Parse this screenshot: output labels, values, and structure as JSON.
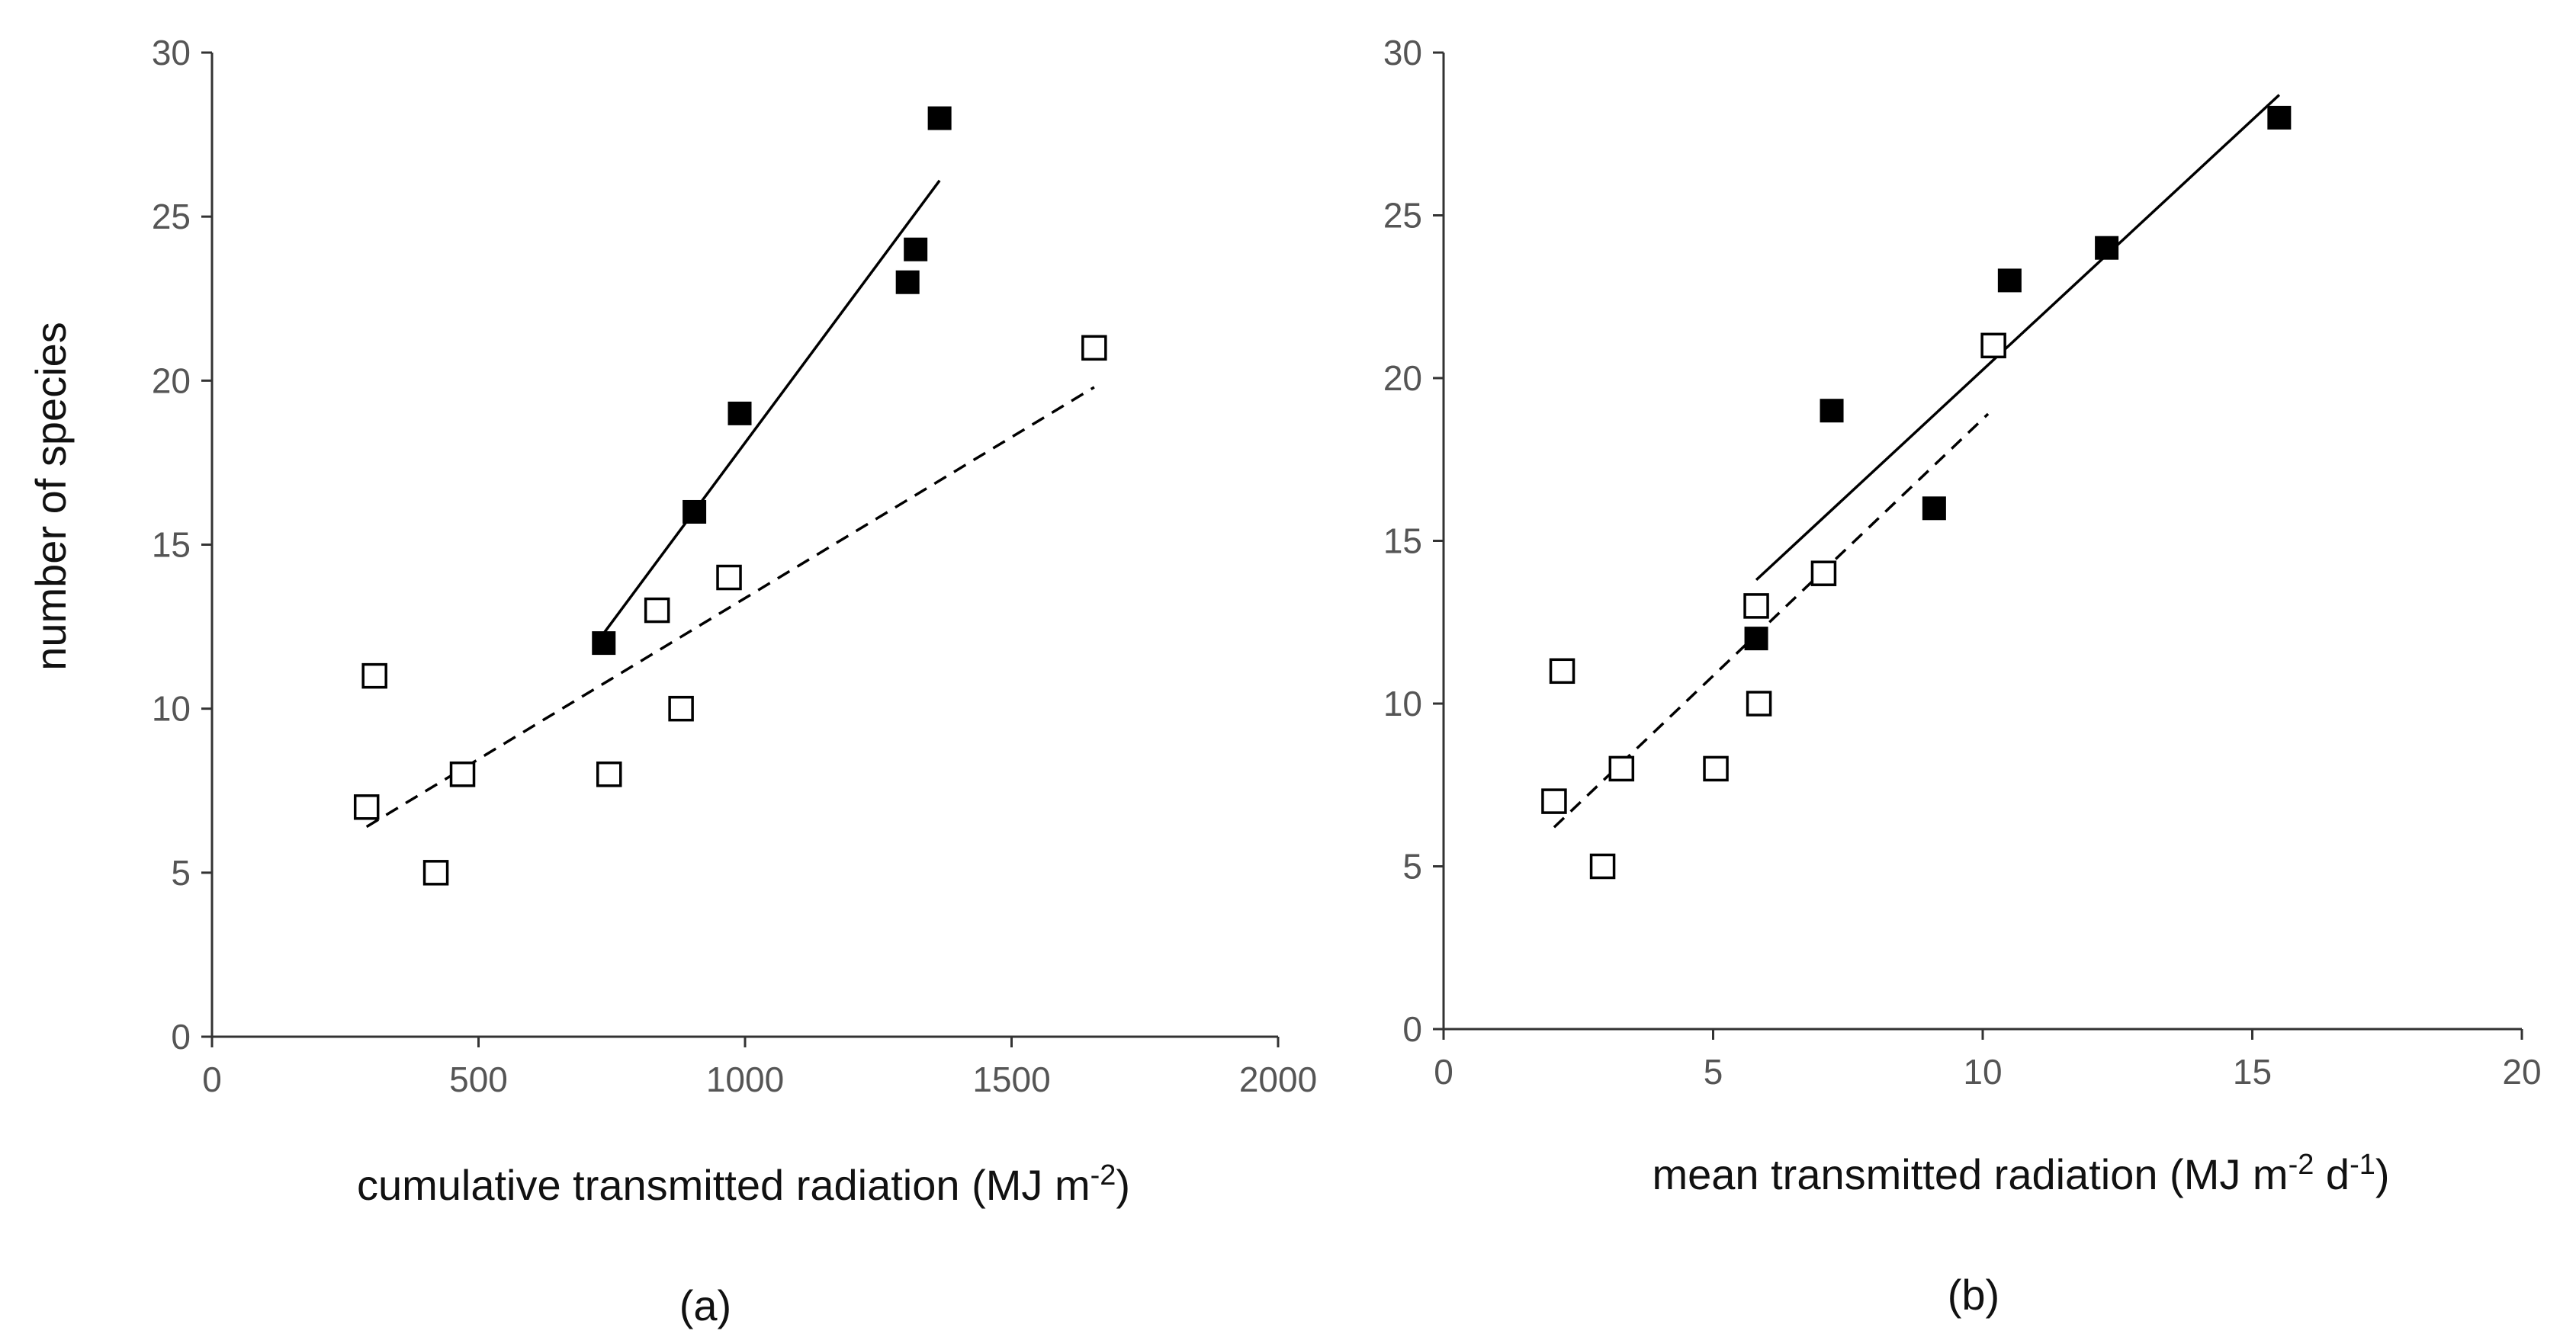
{
  "chart_data": [
    {
      "type": "scatter",
      "panel": "(a)",
      "xlabel": "cumulative transmitted radiation (MJ m",
      "xlabel_sup": "-2",
      "xlabel_end": ")",
      "ylabel": "number of species",
      "xlim": [
        0,
        2000
      ],
      "ylim": [
        0,
        30
      ],
      "xticks": [
        0,
        500,
        1000,
        1500,
        2000
      ],
      "yticks": [
        0,
        5,
        10,
        15,
        20,
        25,
        30
      ],
      "grid": false,
      "series": [
        {
          "name": "filled",
          "marker": "filled-square",
          "x": [
            735,
            905,
            990,
            1305,
            1320,
            1365
          ],
          "y": [
            12,
            16,
            19,
            23,
            24,
            28
          ],
          "fit": {
            "style": "solid",
            "x": [
              735,
              1365
            ],
            "y": [
              12.3,
              26.1
            ]
          }
        },
        {
          "name": "open",
          "marker": "open-square",
          "x": [
            290,
            305,
            420,
            470,
            745,
            835,
            880,
            970,
            1655
          ],
          "y": [
            7,
            11,
            5,
            8,
            8,
            13,
            10,
            14,
            21
          ],
          "fit": {
            "style": "dashed",
            "x": [
              290,
              1655
            ],
            "y": [
              6.4,
              19.8
            ]
          }
        }
      ]
    },
    {
      "type": "scatter",
      "panel": "(b)",
      "xlabel": "mean transmitted radiation (MJ m",
      "xlabel_sup": "-2",
      "xlabel_mid": " d",
      "xlabel_sup2": "-1",
      "xlabel_end": ")",
      "ylabel": "",
      "xlim": [
        0,
        20
      ],
      "ylim": [
        0,
        30
      ],
      "xticks": [
        0,
        5,
        10,
        15,
        20
      ],
      "yticks": [
        0,
        5,
        10,
        15,
        20,
        25,
        30
      ],
      "grid": false,
      "series": [
        {
          "name": "filled",
          "marker": "filled-square",
          "x": [
            5.8,
            7.2,
            9.1,
            10.5,
            12.3,
            15.5
          ],
          "y": [
            12,
            19,
            16,
            23,
            24,
            28
          ],
          "fit": {
            "style": "solid",
            "x": [
              5.8,
              15.5
            ],
            "y": [
              13.8,
              28.7
            ]
          }
        },
        {
          "name": "open",
          "marker": "open-square",
          "x": [
            2.05,
            2.2,
            2.95,
            3.3,
            5.05,
            5.8,
            5.85,
            7.05,
            10.2
          ],
          "y": [
            7,
            11,
            5,
            8,
            8,
            13,
            10,
            14,
            21
          ],
          "fit": {
            "style": "dashed",
            "x": [
              2.05,
              10.1
            ],
            "y": [
              6.2,
              18.9
            ]
          }
        }
      ]
    }
  ],
  "colors": {
    "axis": "#333333",
    "marker": "#000000",
    "tick_text": "#555555",
    "title_text": "#111111"
  }
}
